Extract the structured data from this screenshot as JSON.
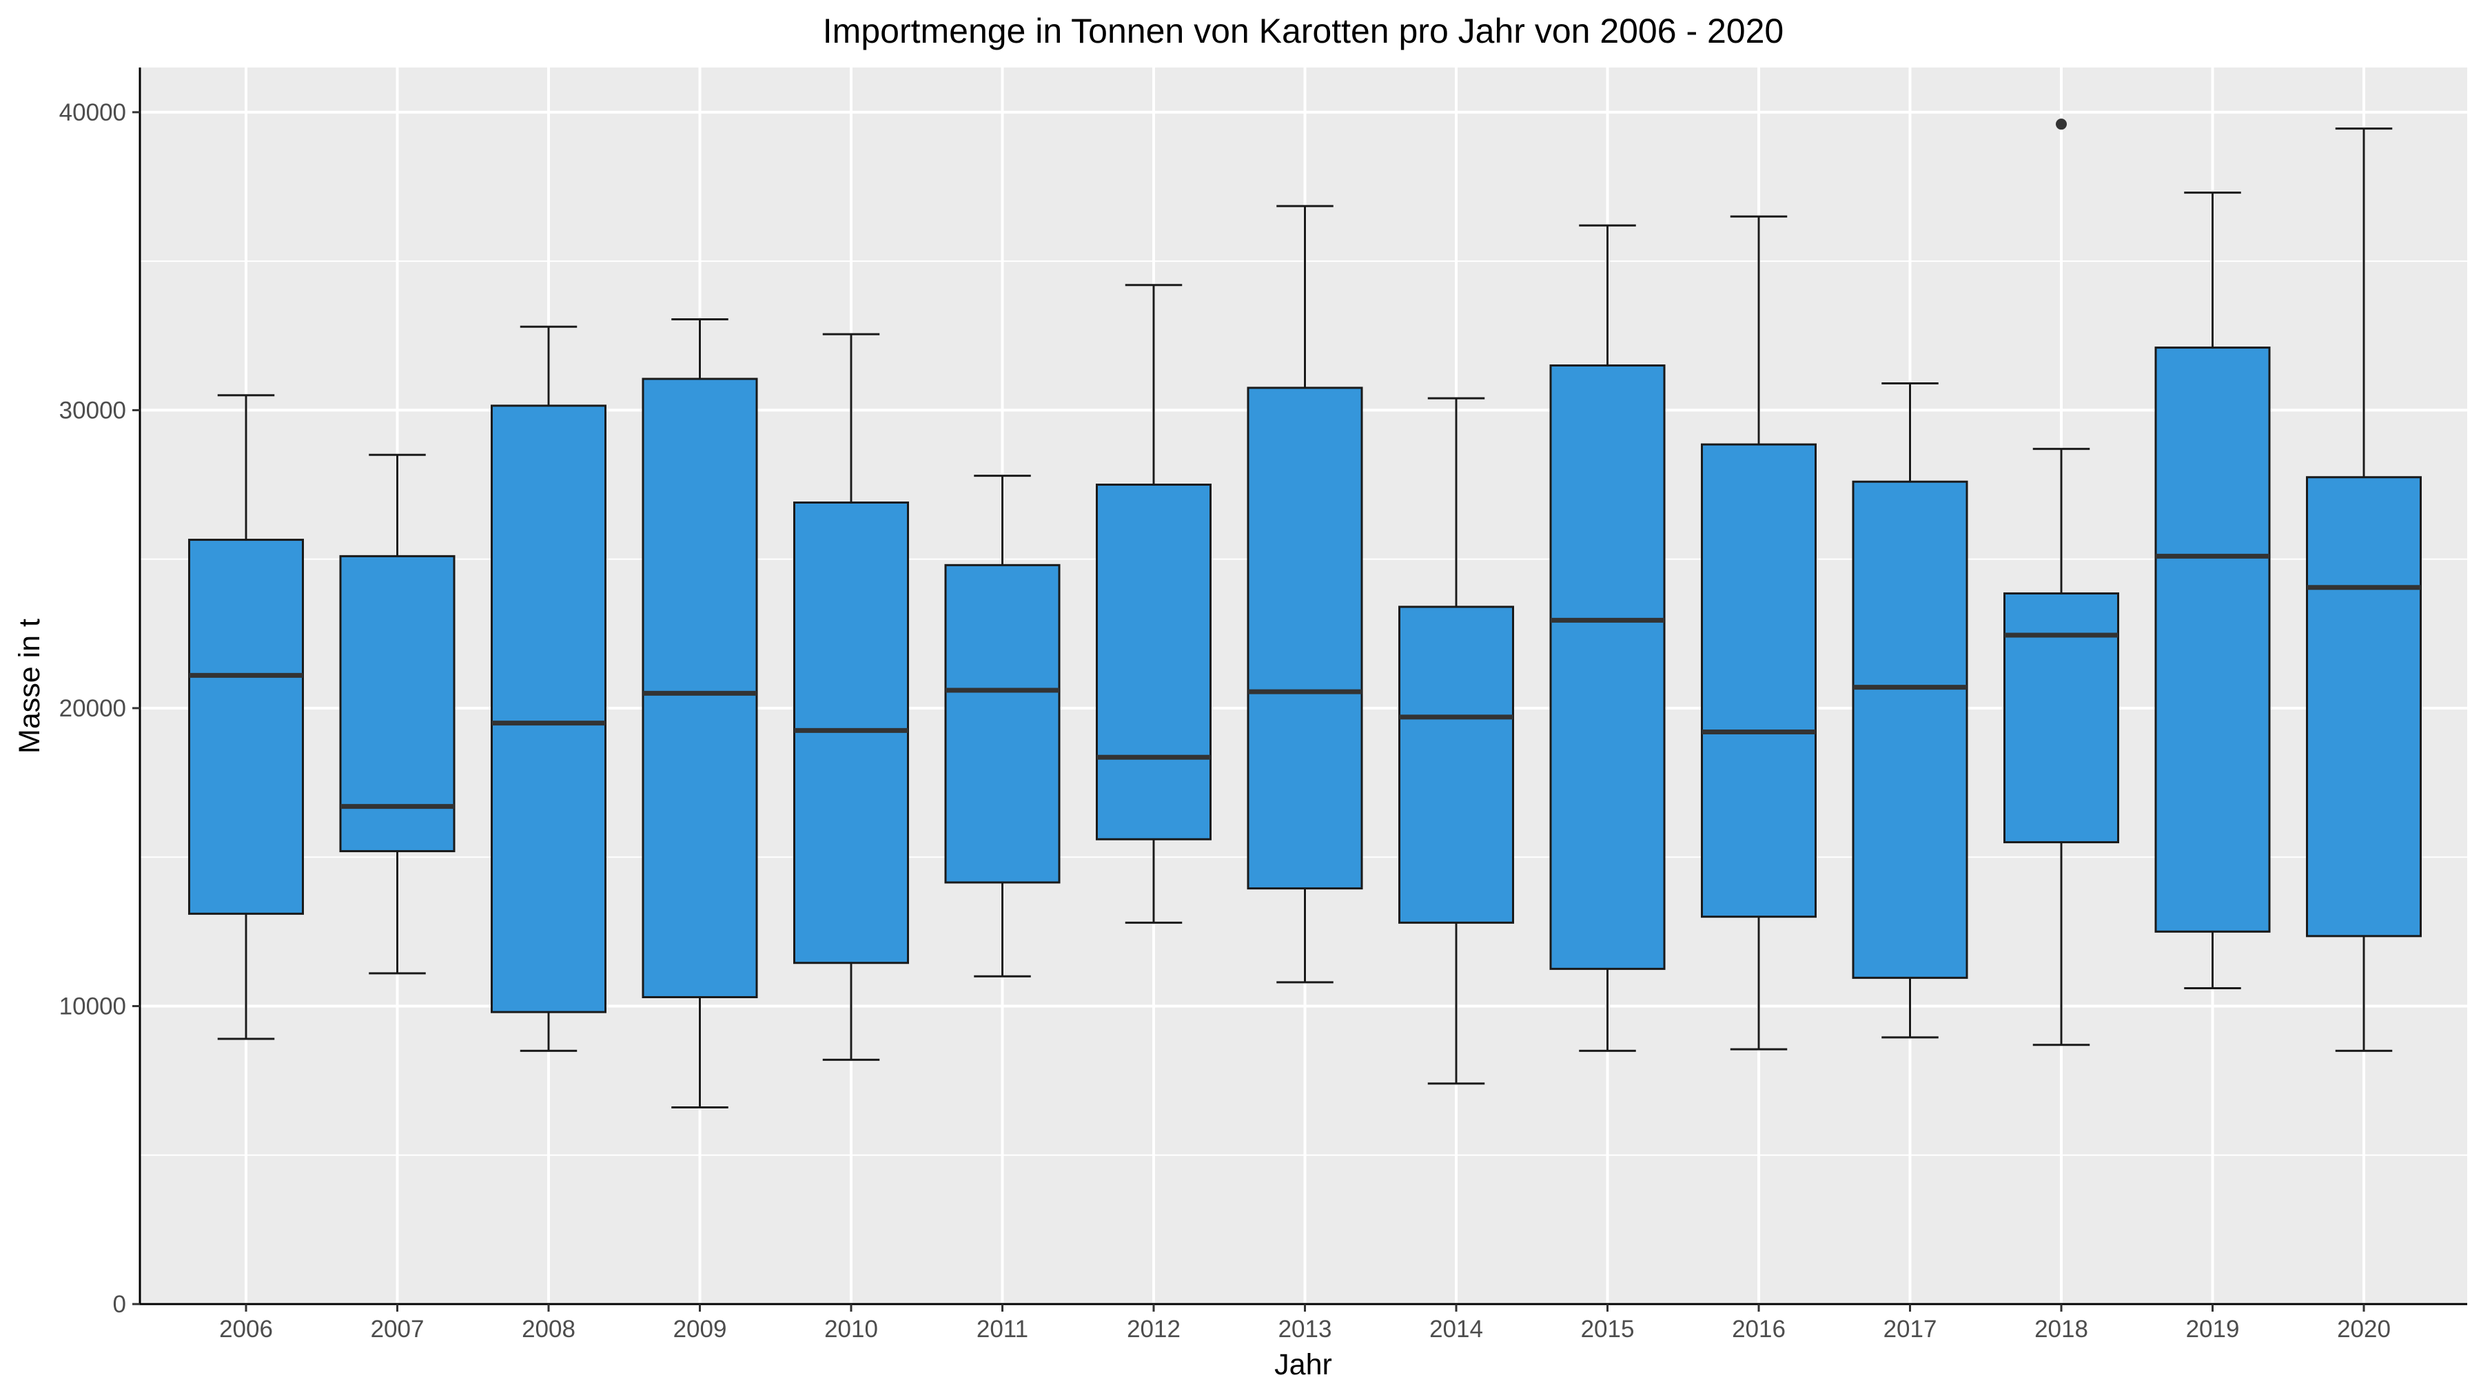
{
  "chart_data": {
    "type": "boxplot",
    "title": "Importmenge in Tonnen von Karotten pro Jahr von 2006 - 2020",
    "xlabel": "Jahr",
    "ylabel": "Masse in t",
    "ylim": [
      0,
      41500
    ],
    "yticks": [
      0,
      10000,
      20000,
      30000,
      40000
    ],
    "grid": true,
    "colors": {
      "panel": "#ebebeb",
      "grid": "#ffffff",
      "box_fill": "#3596db",
      "box_line": "#1a1a1a",
      "tick_text": "#4d4d4d"
    },
    "categories": [
      "2006",
      "2007",
      "2008",
      "2009",
      "2010",
      "2011",
      "2012",
      "2013",
      "2014",
      "2015",
      "2016",
      "2017",
      "2018",
      "2019",
      "2020"
    ],
    "boxes": [
      {
        "category": "2006",
        "whisker_low": 8900,
        "q1": 13100,
        "median": 21100,
        "q3": 25650,
        "whisker_high": 30500,
        "outliers": []
      },
      {
        "category": "2007",
        "whisker_low": 11100,
        "q1": 15200,
        "median": 16700,
        "q3": 25100,
        "whisker_high": 28500,
        "outliers": []
      },
      {
        "category": "2008",
        "whisker_low": 8500,
        "q1": 9800,
        "median": 19500,
        "q3": 30150,
        "whisker_high": 32800,
        "outliers": []
      },
      {
        "category": "2009",
        "whisker_low": 6600,
        "q1": 10300,
        "median": 20500,
        "q3": 31050,
        "whisker_high": 33050,
        "outliers": []
      },
      {
        "category": "2010",
        "whisker_low": 8200,
        "q1": 11450,
        "median": 19250,
        "q3": 26900,
        "whisker_high": 32550,
        "outliers": []
      },
      {
        "category": "2011",
        "whisker_low": 11000,
        "q1": 14150,
        "median": 20600,
        "q3": 24800,
        "whisker_high": 27800,
        "outliers": []
      },
      {
        "category": "2012",
        "whisker_low": 12800,
        "q1": 15600,
        "median": 18350,
        "q3": 27500,
        "whisker_high": 34200,
        "outliers": []
      },
      {
        "category": "2013",
        "whisker_low": 10800,
        "q1": 13950,
        "median": 20550,
        "q3": 30750,
        "whisker_high": 36850,
        "outliers": []
      },
      {
        "category": "2014",
        "whisker_low": 7400,
        "q1": 12800,
        "median": 19700,
        "q3": 23400,
        "whisker_high": 30400,
        "outliers": []
      },
      {
        "category": "2015",
        "whisker_low": 8500,
        "q1": 11250,
        "median": 22950,
        "q3": 31500,
        "whisker_high": 36200,
        "outliers": []
      },
      {
        "category": "2016",
        "whisker_low": 8550,
        "q1": 13000,
        "median": 19200,
        "q3": 28850,
        "whisker_high": 36500,
        "outliers": []
      },
      {
        "category": "2017",
        "whisker_low": 8950,
        "q1": 10950,
        "median": 20700,
        "q3": 27600,
        "whisker_high": 30900,
        "outliers": []
      },
      {
        "category": "2018",
        "whisker_low": 8700,
        "q1": 15500,
        "median": 22450,
        "q3": 23850,
        "whisker_high": 28700,
        "outliers": [
          39600
        ]
      },
      {
        "category": "2019",
        "whisker_low": 10600,
        "q1": 12500,
        "median": 25100,
        "q3": 32100,
        "whisker_high": 37300,
        "outliers": []
      },
      {
        "category": "2020",
        "whisker_low": 8500,
        "q1": 12350,
        "median": 24050,
        "q3": 27750,
        "whisker_high": 39450,
        "outliers": []
      }
    ]
  }
}
